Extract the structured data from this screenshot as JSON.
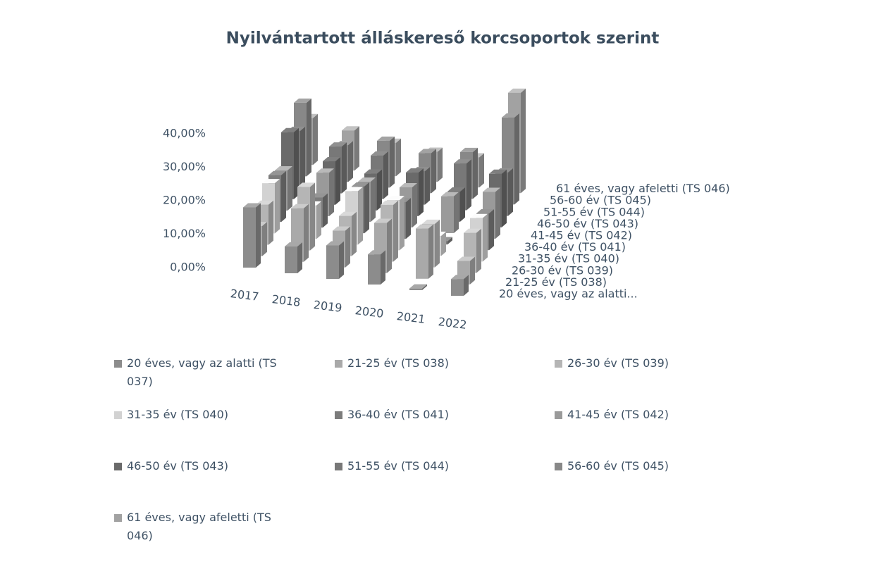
{
  "chart_data": {
    "type": "bar3d",
    "title": "Nyilvántartott álláskereső korcsoportok szerint",
    "categories": [
      "2017",
      "2018",
      "2019",
      "2020",
      "2021",
      "2022"
    ],
    "series": [
      {
        "name": "20 éves, vagy az alatti (TS 037)",
        "color": "#8c8c8c",
        "values": [
          18,
          8,
          10,
          9,
          0.5,
          5
        ]
      },
      {
        "name": "21-25 év (TS 038)",
        "color": "#a9a9a9",
        "values": [
          9,
          16,
          11,
          15,
          15,
          7
        ]
      },
      {
        "name": "26-30 év (TS 039)",
        "color": "#b5b5b5",
        "values": [
          12,
          19,
          12,
          17,
          13,
          12
        ]
      },
      {
        "name": "31-35 év (TS 040)",
        "color": "#d2d2d2",
        "values": [
          15,
          10,
          16,
          15,
          6,
          13
        ]
      },
      {
        "name": "36-40 év (TS 041)",
        "color": "#7c7c7c",
        "values": [
          14,
          9,
          14,
          11,
          1,
          11
        ]
      },
      {
        "name": "41-45 év (TS 042)",
        "color": "#9a9a9a",
        "values": [
          12,
          13,
          12,
          12,
          11,
          14
        ]
      },
      {
        "name": "46-50 év (TS 043)",
        "color": "#6a6a6a",
        "values": [
          20,
          13,
          11,
          13,
          9,
          16
        ]
      },
      {
        "name": "51-55 év (TS 044)",
        "color": "#787878",
        "values": [
          17,
          14,
          13,
          10,
          14,
          13
        ]
      },
      {
        "name": "56-60 év (TS 045)",
        "color": "#888888",
        "values": [
          22,
          11,
          14,
          12,
          14,
          26
        ]
      },
      {
        "name": "61 éves, vagy afeletti (TS 046)",
        "color": "#a2a2a2",
        "values": [
          14,
          12,
          10,
          9,
          9,
          30
        ]
      }
    ],
    "series_axis_labels": [
      "20 éves, vagy az alatti...",
      "21-25 év (TS 038)",
      "26-30 év (TS 039)",
      "31-35 év (TS 040)",
      "36-40 év (TS 041)",
      "41-45 év (TS 042)",
      "46-50 év (TS 043)",
      "51-55 év (TS 044)",
      "56-60 év (TS 045)",
      "61 éves, vagy afeletti (TS 046)"
    ],
    "ylim": [
      0,
      40
    ],
    "yticks": [
      {
        "value": 0,
        "label": "0,00%"
      },
      {
        "value": 10,
        "label": "10,00%"
      },
      {
        "value": 20,
        "label": "20,00%"
      },
      {
        "value": 30,
        "label": "30,00%"
      },
      {
        "value": 40,
        "label": "40,00%"
      }
    ]
  }
}
